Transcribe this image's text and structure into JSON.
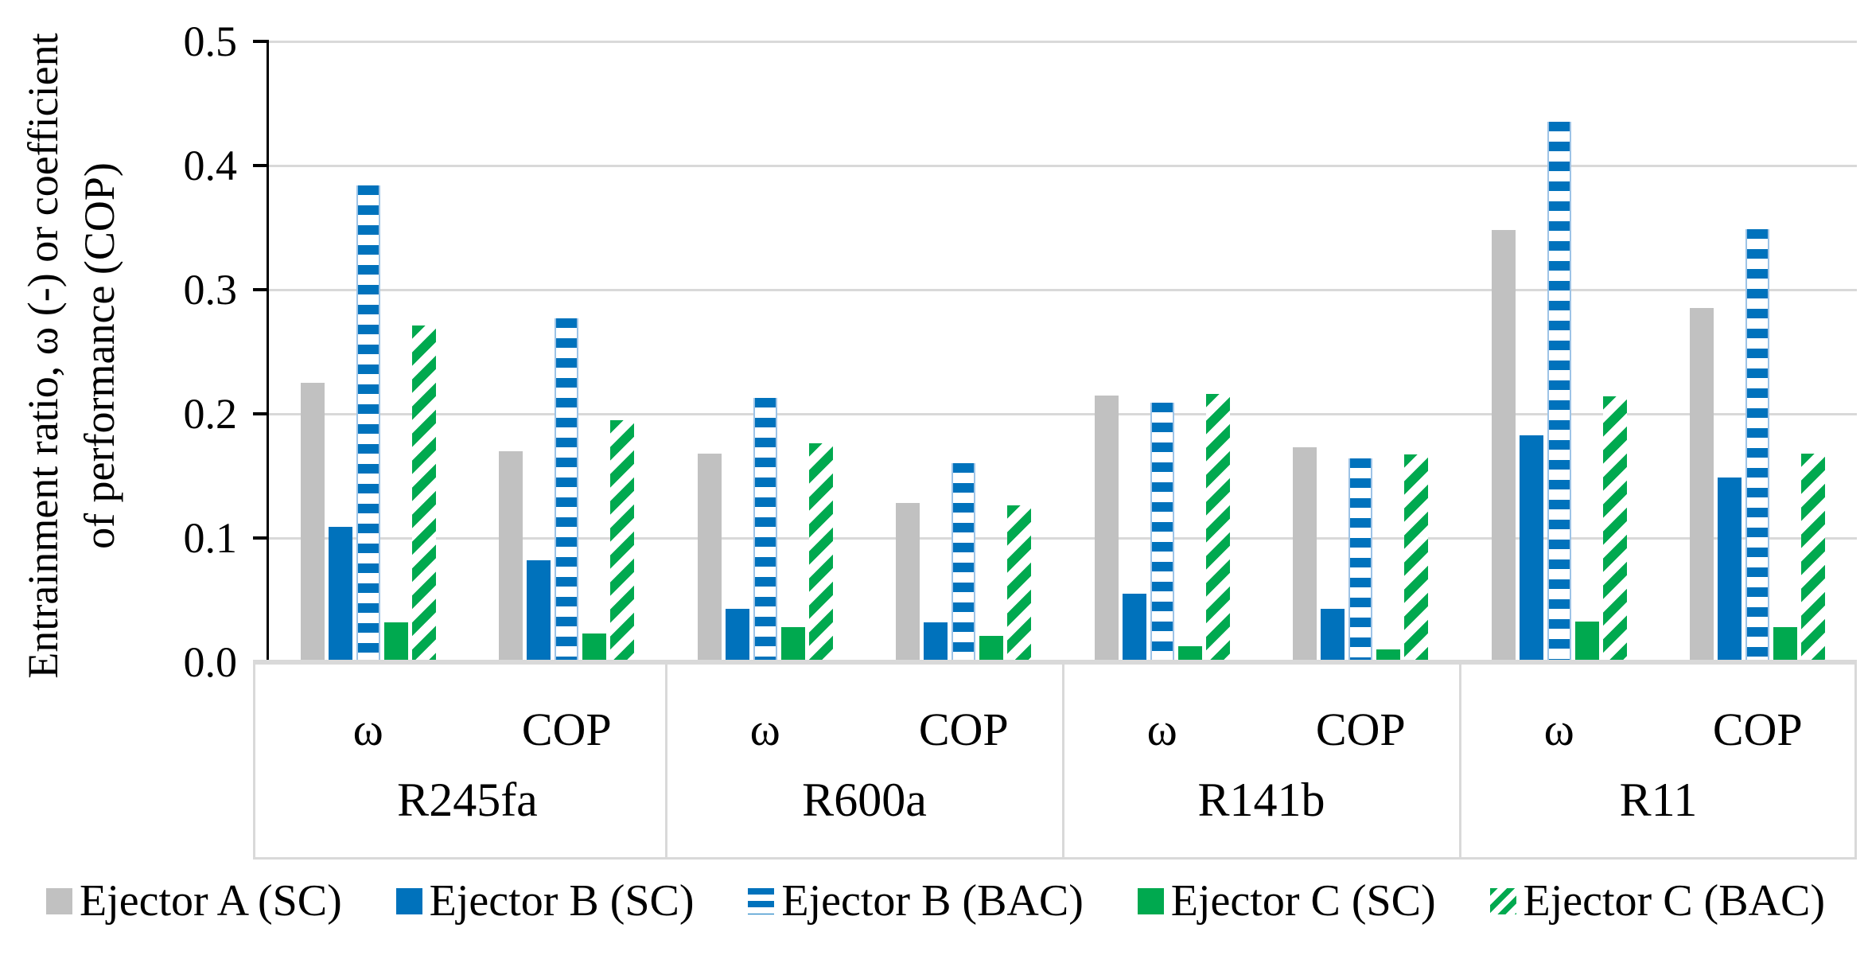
{
  "figure": {
    "background": "#FFFFFF",
    "axis_color": "#000000",
    "gridline_color": "#D9D9D9",
    "label_table_line_color": "#D9D9D9"
  },
  "chart_data": {
    "type": "bar",
    "title": "",
    "ylabel": "Entrainment ratio, ω (-) or coefficient of performance (COP)",
    "ylabel_line1": "Entrainment ratio, ω (-) or coefficient",
    "ylabel_line2": "of performance (COP)",
    "ylim": [
      0,
      0.5
    ],
    "ytick_step": 0.1,
    "yticks": [
      "0.5",
      "0.4",
      "0.3",
      "0.2",
      "0.1",
      "0.0"
    ],
    "grid": "horizontal",
    "legend_position": "bottom",
    "sub_labels": [
      "ω",
      "COP"
    ],
    "group_labels": [
      "R245fa",
      "R600a",
      "R141b",
      "R11"
    ],
    "categories": [
      "R245fa ω",
      "R245fa COP",
      "R600a ω",
      "R600a COP",
      "R141b ω",
      "R141b COP",
      "R11 ω",
      "R11 COP"
    ],
    "series": [
      {
        "name": "Ejector A (SC)",
        "pattern": "solid",
        "color": "#C1C1C1",
        "values": [
          0.225,
          0.17,
          0.168,
          0.128,
          0.215,
          0.173,
          0.348,
          0.285
        ]
      },
      {
        "name": "Ejector B (SC)",
        "pattern": "solid",
        "color": "#0072BC",
        "values": [
          0.109,
          0.082,
          0.043,
          0.032,
          0.055,
          0.043,
          0.183,
          0.149
        ]
      },
      {
        "name": "Ejector B (BAC)",
        "pattern": "horizontal-stripes",
        "color": "#0072BC",
        "edge_color": "#9DC3E6",
        "values": [
          0.384,
          0.277,
          0.213,
          0.16,
          0.209,
          0.164,
          0.435,
          0.349
        ]
      },
      {
        "name": "Ejector C (SC)",
        "pattern": "solid",
        "color": "#00A94F",
        "values": [
          0.032,
          0.023,
          0.028,
          0.021,
          0.013,
          0.01,
          0.033,
          0.028
        ]
      },
      {
        "name": "Ejector C (BAC)",
        "pattern": "diagonal-stripes",
        "color": "#00A94F",
        "values": [
          0.271,
          0.195,
          0.176,
          0.126,
          0.216,
          0.167,
          0.214,
          0.168
        ]
      }
    ]
  }
}
